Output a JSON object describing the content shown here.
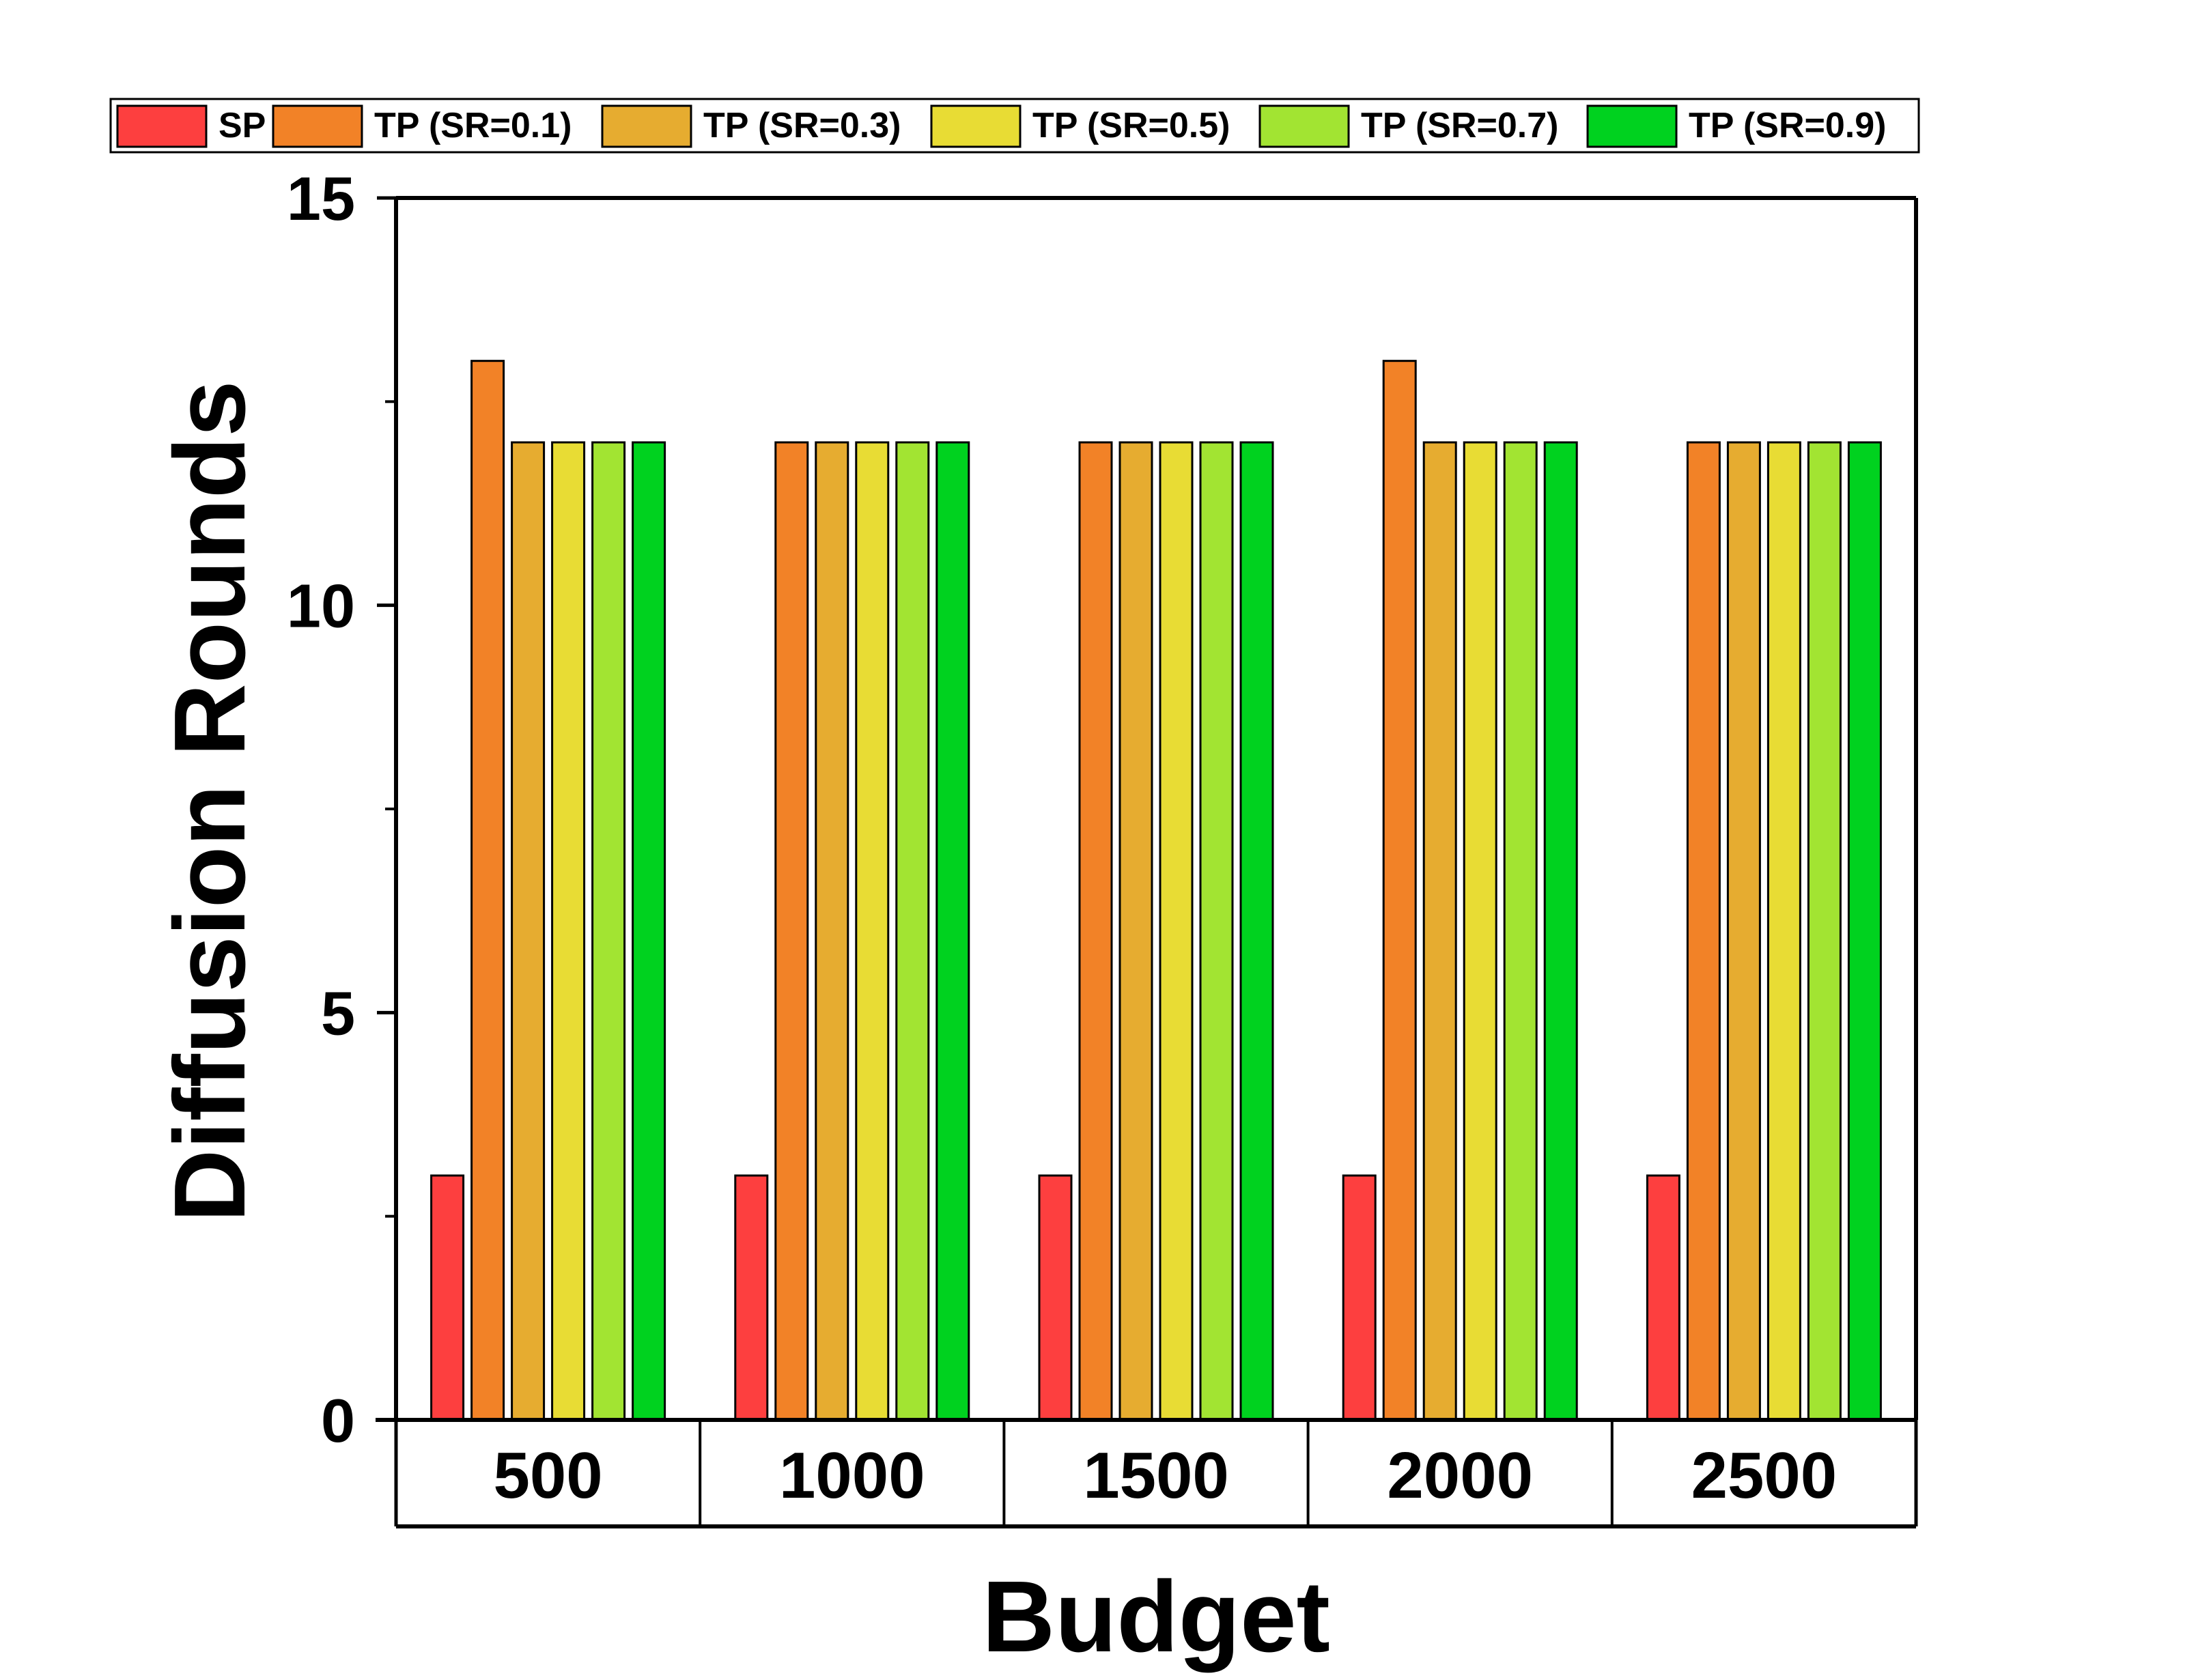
{
  "chart_data": {
    "type": "bar",
    "xlabel": "Budget",
    "ylabel": "Diffusion Rounds",
    "categories": [
      "500",
      "1000",
      "1500",
      "2000",
      "2500"
    ],
    "ylim": [
      0,
      15
    ],
    "yticks": [
      "0",
      "5",
      "10",
      "15"
    ],
    "legend_position": "top",
    "grid": false,
    "series": [
      {
        "name": "SP",
        "color": "#fd3f3f",
        "values": [
          3,
          3,
          3,
          3,
          3
        ]
      },
      {
        "name": "TP (SR=0.1)",
        "color": "#f28227",
        "values": [
          13,
          12,
          12,
          13,
          12
        ]
      },
      {
        "name": "TP (SR=0.3)",
        "color": "#e6ac30",
        "values": [
          12,
          12,
          12,
          12,
          12
        ]
      },
      {
        "name": "TP (SR=0.5)",
        "color": "#e8dc34",
        "values": [
          12,
          12,
          12,
          12,
          12
        ]
      },
      {
        "name": "TP (SR=0.7)",
        "color": "#a2e432",
        "values": [
          12,
          12,
          12,
          12,
          12
        ]
      },
      {
        "name": "TP (SR=0.9)",
        "color": "#00d21f",
        "values": [
          12,
          12,
          12,
          12,
          12
        ]
      }
    ]
  }
}
